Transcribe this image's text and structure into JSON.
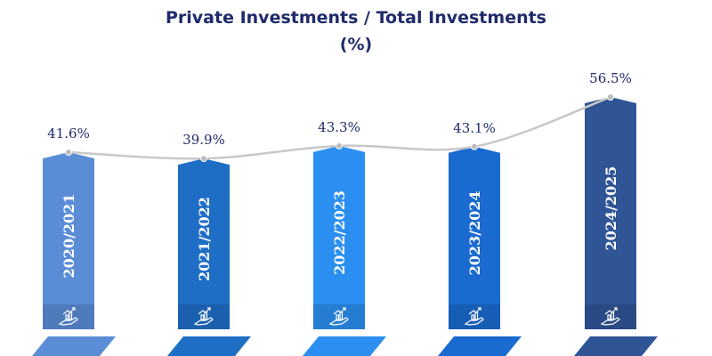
{
  "title_line1": "Private Investments / Total Investments",
  "title_line2": "(%)",
  "colors": {
    "title": "#1f2a6b",
    "line": "#c8c8c8",
    "bars": [
      "#5b8dd6",
      "#1f6ec6",
      "#2a8ff0",
      "#1a6ad0",
      "#2f5597"
    ]
  },
  "chart_data": {
    "type": "bar",
    "title": "Private Investments / Total Investments (%)",
    "categories": [
      "2020/2021",
      "2021/2022",
      "2022/2023",
      "2023/2024",
      "2024/2025"
    ],
    "values": [
      41.6,
      39.9,
      43.3,
      43.1,
      56.5
    ],
    "value_labels": [
      "41.6%",
      "39.9%",
      "43.3%",
      "43.1%",
      "56.5%"
    ],
    "xlabel": "",
    "ylabel": "",
    "overlay": "line",
    "grid": false,
    "legend": "none"
  }
}
